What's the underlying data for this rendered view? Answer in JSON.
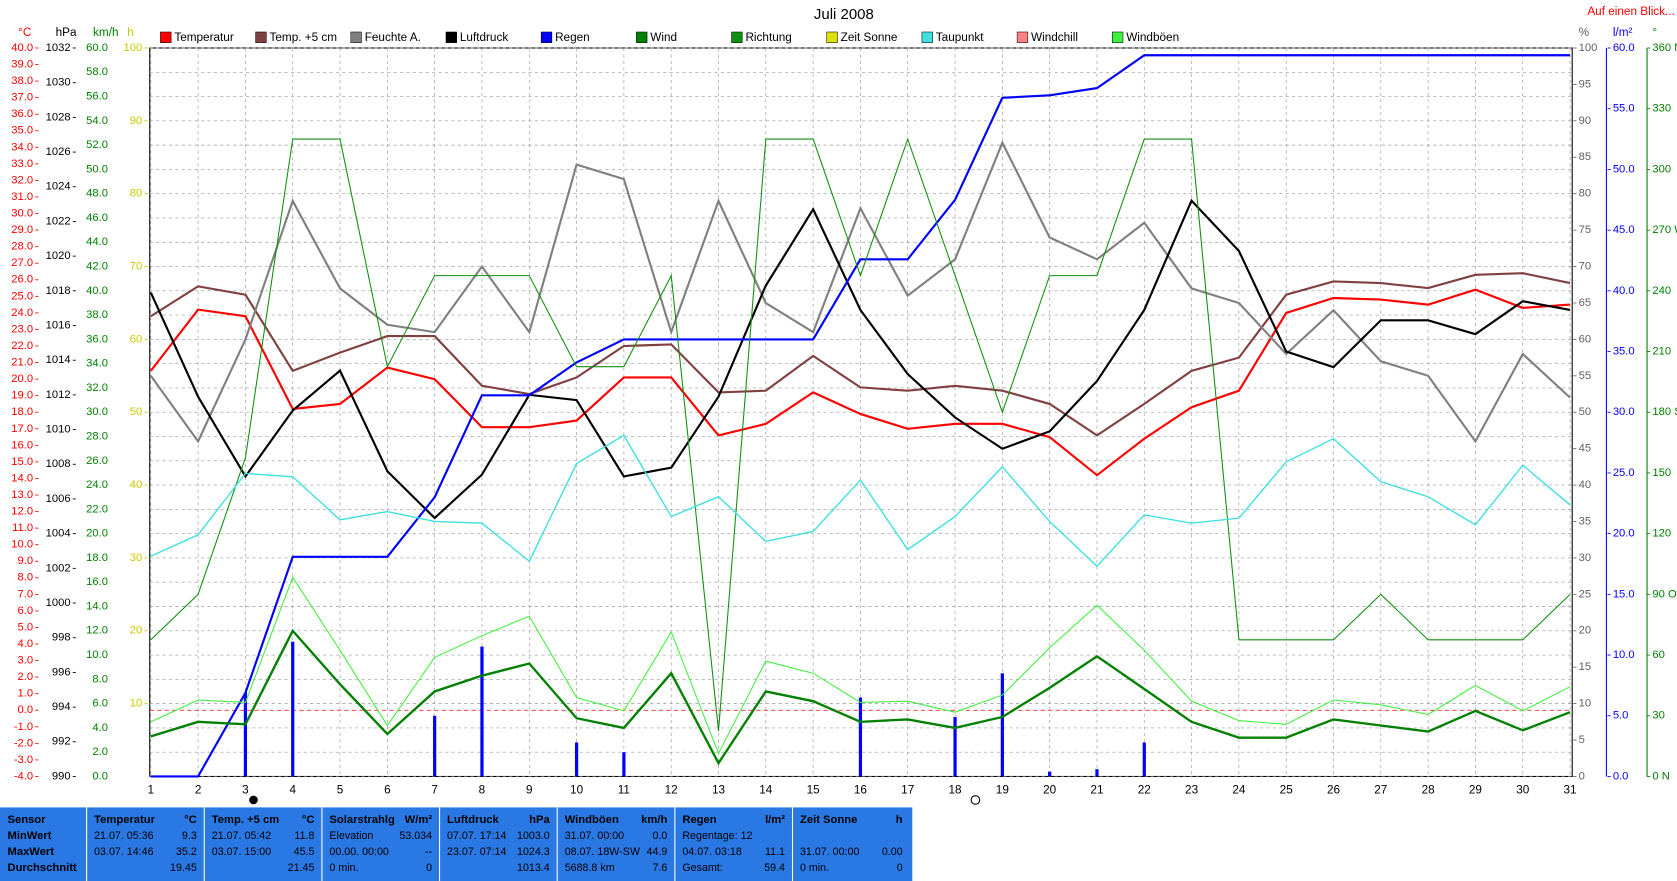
{
  "chart_data": {
    "type": "line",
    "title": "Juli 2008",
    "link": "Auf einen Blick...",
    "categories": [
      1,
      2,
      3,
      4,
      5,
      6,
      7,
      8,
      9,
      10,
      11,
      12,
      13,
      14,
      15,
      16,
      17,
      18,
      19,
      20,
      21,
      22,
      23,
      24,
      25,
      26,
      27,
      28,
      29,
      30,
      31
    ],
    "axes": [
      {
        "unit": "°C",
        "color": "#ff0000",
        "side": "left",
        "lim": [
          -4,
          40
        ],
        "ticks": [
          {
            "value": -4,
            "label": "-4.0"
          },
          {
            "value": -3,
            "label": "-3.0"
          },
          {
            "value": -2,
            "label": "-2.0"
          },
          {
            "value": -1,
            "label": "-1.0"
          },
          {
            "value": 0,
            "label": "0.0"
          },
          {
            "value": 1,
            "label": "1.0"
          },
          {
            "value": 2,
            "label": "2.0"
          },
          {
            "value": 3,
            "label": "3.0"
          },
          {
            "value": 4,
            "label": "4.0"
          },
          {
            "value": 5,
            "label": "5.0"
          },
          {
            "value": 6,
            "label": "6.0"
          },
          {
            "value": 7,
            "label": "7.0"
          },
          {
            "value": 8,
            "label": "8.0"
          },
          {
            "value": 9,
            "label": "9.0"
          },
          {
            "value": 10,
            "label": "10.0"
          },
          {
            "value": 11,
            "label": "11.0"
          },
          {
            "value": 12,
            "label": "12.0"
          },
          {
            "value": 13,
            "label": "13.0"
          },
          {
            "value": 14,
            "label": "14.0"
          },
          {
            "value": 15,
            "label": "15.0"
          },
          {
            "value": 16,
            "label": "16.0"
          },
          {
            "value": 17,
            "label": "17.0"
          },
          {
            "value": 18,
            "label": "18.0"
          },
          {
            "value": 19,
            "label": "19.0"
          },
          {
            "value": 20,
            "label": "20.0"
          },
          {
            "value": 21,
            "label": "21.0"
          },
          {
            "value": 22,
            "label": "22.0"
          },
          {
            "value": 23,
            "label": "23.0"
          },
          {
            "value": 24,
            "label": "24.0"
          },
          {
            "value": 25,
            "label": "25.0"
          },
          {
            "value": 26,
            "label": "26.0"
          },
          {
            "value": 27,
            "label": "27.0"
          },
          {
            "value": 28,
            "label": "28.0"
          },
          {
            "value": 29,
            "label": "29.0"
          },
          {
            "value": 30,
            "label": "30.0"
          },
          {
            "value": 31,
            "label": "31.0"
          },
          {
            "value": 32,
            "label": "32.0"
          },
          {
            "value": 33,
            "label": "33.0"
          },
          {
            "value": 34,
            "label": "34.0"
          },
          {
            "value": 35,
            "label": "35.0"
          },
          {
            "value": 36,
            "label": "36.0"
          },
          {
            "value": 37,
            "label": "37.0"
          },
          {
            "value": 38,
            "label": "38.0"
          },
          {
            "value": 39,
            "label": "39.0"
          },
          {
            "value": 40,
            "label": "40.0"
          }
        ]
      },
      {
        "unit": "hPa",
        "color": "#000000",
        "side": "left",
        "lim": [
          990,
          1032
        ],
        "ticks": [
          990,
          992,
          994,
          996,
          998,
          1000,
          1002,
          1004,
          1006,
          1008,
          1010,
          1012,
          1014,
          1016,
          1018,
          1020,
          1022,
          1024,
          1026,
          1028,
          1030,
          1032
        ]
      },
      {
        "unit": "km/h",
        "color": "#008000",
        "side": "left",
        "lim": [
          0,
          60
        ],
        "grid": true,
        "ticks": [
          {
            "value": 0,
            "label": "0.0"
          },
          {
            "value": 2,
            "label": "2.0"
          },
          {
            "value": 4,
            "label": "4.0"
          },
          {
            "value": 6,
            "label": "6.0"
          },
          {
            "value": 8,
            "label": "8.0"
          },
          {
            "value": 10,
            "label": "10.0"
          },
          {
            "value": 12,
            "label": "12.0"
          },
          {
            "value": 14,
            "label": "14.0"
          },
          {
            "value": 16,
            "label": "16.0"
          },
          {
            "value": 18,
            "label": "18.0"
          },
          {
            "value": 20,
            "label": "20.0"
          },
          {
            "value": 22,
            "label": "22.0"
          },
          {
            "value": 24,
            "label": "24.0"
          },
          {
            "value": 26,
            "label": "26.0"
          },
          {
            "value": 28,
            "label": "28.0"
          },
          {
            "value": 30,
            "label": "30.0"
          },
          {
            "value": 32,
            "label": "32.0"
          },
          {
            "value": 34,
            "label": "34.0"
          },
          {
            "value": 36,
            "label": "36.0"
          },
          {
            "value": 38,
            "label": "38.0"
          },
          {
            "value": 40,
            "label": "40.0"
          },
          {
            "value": 42,
            "label": "42.0"
          },
          {
            "value": 44,
            "label": "44.0"
          },
          {
            "value": 46,
            "label": "46.0"
          },
          {
            "value": 48,
            "label": "48.0"
          },
          {
            "value": 50,
            "label": "50.0"
          },
          {
            "value": 52,
            "label": "52.0"
          },
          {
            "value": 54,
            "label": "54.0"
          },
          {
            "value": 56,
            "label": "56.0"
          },
          {
            "value": 58,
            "label": "58.0"
          },
          {
            "value": 60,
            "label": "60.0"
          }
        ]
      },
      {
        "unit": "h",
        "color": "#c8c800",
        "side": "left",
        "lim": [
          0,
          100
        ],
        "ticks": [
          10,
          20,
          30,
          40,
          50,
          60,
          70,
          80,
          90,
          100
        ]
      },
      {
        "unit": "%",
        "color": "#606060",
        "side": "right",
        "lim": [
          0,
          100
        ],
        "ticks": [
          0,
          5,
          10,
          15,
          20,
          25,
          30,
          35,
          40,
          45,
          50,
          55,
          60,
          65,
          70,
          75,
          80,
          85,
          90,
          95,
          100
        ]
      },
      {
        "unit": "l/m²",
        "color": "#0000ff",
        "side": "right",
        "lim": [
          0,
          60
        ],
        "ticks": [
          {
            "value": 0,
            "label": "0.0"
          },
          {
            "value": 5,
            "label": "5.0"
          },
          {
            "value": 10,
            "label": "10.0"
          },
          {
            "value": 15,
            "label": "15.0"
          },
          {
            "value": 20,
            "label": "20.0"
          },
          {
            "value": 25,
            "label": "25.0"
          },
          {
            "value": 30,
            "label": "30.0"
          },
          {
            "value": 35,
            "label": "35.0"
          },
          {
            "value": 40,
            "label": "40.0"
          },
          {
            "value": 45,
            "label": "45.0"
          },
          {
            "value": 50,
            "label": "50.0"
          },
          {
            "value": 55,
            "label": "55.0"
          },
          {
            "value": 60,
            "label": "60.0"
          }
        ]
      },
      {
        "unit": "°",
        "color": "#008000",
        "side": "right",
        "lim": [
          0,
          360
        ],
        "ticks": [
          {
            "value": 0,
            "label": "0 N"
          },
          30,
          60,
          {
            "value": 90,
            "label": "90 O"
          },
          120,
          150,
          {
            "value": 180,
            "label": "180 S"
          },
          210,
          240,
          {
            "value": 270,
            "label": "270 W"
          },
          300,
          330,
          {
            "value": 360,
            "label": "360 N"
          }
        ]
      }
    ],
    "reference_line": {
      "axis": 0,
      "value": 0,
      "color": "#ff0000"
    },
    "series": [
      {
        "name": "Temperatur",
        "color": "#ff0000",
        "axis": 0,
        "values": [
          20.5,
          24.2,
          23.8,
          18.2,
          18.5,
          20.7,
          20.0,
          17.1,
          17.1,
          17.5,
          20.1,
          20.1,
          16.6,
          17.3,
          19.2,
          17.9,
          17.0,
          17.3,
          17.3,
          16.5,
          14.2,
          16.4,
          18.3,
          19.3,
          24.0,
          24.9,
          24.8,
          24.5,
          25.4,
          24.3,
          24.5
        ]
      },
      {
        "name": "Temp. +5 cm",
        "color": "#804040",
        "axis": 0,
        "values": [
          23.8,
          25.6,
          25.1,
          20.5,
          21.6,
          22.6,
          22.6,
          19.6,
          19.1,
          20.1,
          22.0,
          22.1,
          19.2,
          19.3,
          21.4,
          19.5,
          19.3,
          19.6,
          19.3,
          18.5,
          16.6,
          18.5,
          20.5,
          21.3,
          25.1,
          25.9,
          25.8,
          25.5,
          26.3,
          26.4,
          25.8
        ]
      },
      {
        "name": "Feuchte A.",
        "color": "#808080",
        "axis": 4,
        "values": [
          55,
          46,
          60,
          79,
          67,
          62,
          61,
          70,
          61,
          84,
          82,
          61,
          79,
          65,
          61,
          78,
          66,
          71,
          87,
          74,
          71,
          76,
          67,
          65,
          58,
          64,
          57,
          55,
          46,
          58,
          52
        ]
      },
      {
        "name": "Luftdruck",
        "color": "#000000",
        "axis": 1,
        "values": [
          1017.9,
          1011.9,
          1007.3,
          1011.1,
          1013.4,
          1007.6,
          1004.9,
          1007.4,
          1012.0,
          1011.7,
          1007.3,
          1007.8,
          1011.9,
          1018.3,
          1022.7,
          1016.9,
          1013.2,
          1010.7,
          1008.9,
          1009.9,
          1012.8,
          1016.9,
          1023.2,
          1020.3,
          1014.5,
          1013.6,
          1016.3,
          1016.3,
          1015.5,
          1017.4,
          1016.9
        ]
      },
      {
        "name": "Regen",
        "color": "#0000ff",
        "axis": 5,
        "values": [
          0,
          0,
          6.9,
          18.1,
          18.1,
          18.1,
          23.0,
          31.4,
          31.4,
          34.1,
          36.0,
          36.0,
          36.0,
          36.0,
          36.0,
          42.6,
          42.6,
          47.5,
          55.9,
          56.1,
          56.7,
          59.4,
          59.4,
          59.4,
          59.4,
          59.4,
          59.4,
          59.4,
          59.4,
          59.4,
          59.4
        ]
      },
      {
        "name": "Wind",
        "color": "#008000",
        "axis": 2,
        "values": [
          3.3,
          4.5,
          4.3,
          12.0,
          7.6,
          3.5,
          7.0,
          8.3,
          9.3,
          4.8,
          4.0,
          8.5,
          1.1,
          7.0,
          6.2,
          4.5,
          4.7,
          4.0,
          4.9,
          7.3,
          9.9,
          7.2,
          4.5,
          3.2,
          3.2,
          4.7,
          4.2,
          3.7,
          5.4,
          3.8,
          5.3
        ]
      },
      {
        "name": "Richtung",
        "color": "#109010",
        "axis": 6,
        "values": [
          67.5,
          90,
          157.5,
          315,
          315,
          202.5,
          247.5,
          247.5,
          247.5,
          202.5,
          202.5,
          247.5,
          22.5,
          315,
          315,
          247.5,
          315,
          247.5,
          180,
          247.5,
          247.5,
          315,
          315,
          67.5,
          67.5,
          67.5,
          90,
          67.5,
          67.5,
          67.5,
          90
        ]
      },
      {
        "name": "Zeit Sonne",
        "color": "#e0e000"
      },
      {
        "name": "Taupunkt",
        "color": "#40e0e0",
        "axis": 0,
        "values": [
          9.3,
          10.6,
          14.3,
          14.1,
          11.5,
          12.0,
          11.4,
          11.3,
          9.0,
          14.9,
          16.6,
          11.7,
          12.9,
          10.2,
          10.8,
          13.9,
          9.7,
          11.7,
          14.7,
          11.4,
          8.7,
          11.8,
          11.3,
          11.6,
          15.0,
          16.4,
          13.8,
          12.9,
          11.2,
          14.8,
          12.4
        ]
      },
      {
        "name": "Windchill",
        "color": "#ff8080"
      },
      {
        "name": "Windböen",
        "color": "#40f040",
        "axis": 2,
        "values": [
          4.5,
          6.3,
          6.1,
          16.4,
          10.4,
          4.2,
          9.8,
          11.6,
          13.2,
          6.5,
          5.4,
          11.9,
          1.9,
          9.5,
          8.5,
          6.1,
          6.2,
          5.3,
          6.7,
          10.6,
          14.1,
          10.4,
          6.2,
          4.6,
          4.3,
          6.3,
          5.9,
          5.1,
          7.5,
          5.4,
          7.4
        ]
      }
    ],
    "bars": {
      "color": "#0000ff",
      "axis": 5,
      "values": [
        0,
        0,
        6.9,
        11.1,
        0,
        0,
        5.0,
        10.7,
        0,
        2.8,
        2.0,
        0,
        0,
        0,
        0,
        6.5,
        0,
        4.9,
        8.5,
        0.4,
        0.6,
        2.8,
        0,
        0,
        0,
        0,
        0,
        0,
        0,
        0,
        0
      ]
    }
  },
  "stats": {
    "row_labels": [
      "Sensor",
      "MinWert",
      "MaxWert",
      "Durchschnitt"
    ],
    "columns": [
      {
        "name": "Temperatur",
        "unit": "°C",
        "rows": [
          [
            "21.07. 05:36",
            "9.3"
          ],
          [
            "03.07. 14:46",
            "35.2"
          ],
          [
            null,
            "19.45"
          ]
        ]
      },
      {
        "name": "Temp. +5 cm",
        "unit": "°C",
        "rows": [
          [
            "21.07. 05:42",
            "11.8"
          ],
          [
            "03.07. 15:00",
            "45.5"
          ],
          [
            null,
            "21.45"
          ]
        ]
      },
      {
        "name": "Solarstrahlg",
        "unit": "W/m²",
        "rows": [
          [
            "Elevation",
            "53.034"
          ],
          [
            "00.00. 00:00",
            "--"
          ],
          [
            "0 min.",
            "0"
          ]
        ]
      },
      {
        "name": "Luftdruck",
        "unit": "hPa",
        "rows": [
          [
            "07.07. 17:14",
            "1003.0"
          ],
          [
            "23.07. 07:14",
            "1024.3"
          ],
          [
            null,
            "1013.4"
          ]
        ]
      },
      {
        "name": "Windböen",
        "unit": "km/h",
        "rows": [
          [
            "31.07. 00:00",
            "0.0"
          ],
          [
            "08.07. 18W-SW",
            "44.9"
          ],
          [
            "5688.8 km",
            "7.6"
          ]
        ]
      },
      {
        "name": "Regen",
        "unit": "l/m²",
        "rows": [
          [
            "Regentage: 12",
            null
          ],
          [
            "04.07. 03:18",
            "11.1"
          ],
          [
            "Gesamt:",
            "59.4"
          ]
        ]
      },
      {
        "name": "Zeit Sonne",
        "unit": "h",
        "rows": [
          [
            null,
            null
          ],
          [
            "31.07. 00:00",
            "0.00"
          ],
          [
            "0 min.",
            "0"
          ]
        ]
      }
    ]
  }
}
